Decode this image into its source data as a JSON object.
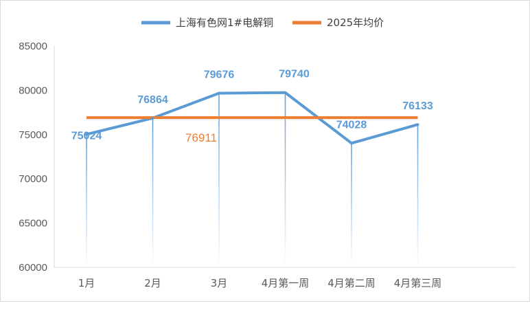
{
  "chart_data": {
    "type": "line",
    "categories": [
      "1月",
      "2月",
      "3月",
      "4月第一周",
      "4月第二周",
      "4月第三周"
    ],
    "ylim": [
      60000,
      85000
    ],
    "yticks": [
      60000,
      65000,
      70000,
      75000,
      80000,
      85000
    ],
    "series": [
      {
        "name": "上海有色网1#电解铜",
        "color": "#5b9bd5",
        "values": [
          75024,
          76864,
          79676,
          79740,
          74028,
          76133
        ],
        "labels": [
          "75024",
          "76864",
          "79676",
          "79740",
          "74028",
          "76133"
        ]
      },
      {
        "name": "2025年均价",
        "color": "#ed7d31",
        "values": [
          76911,
          76911,
          76911,
          76911,
          76911,
          76911
        ],
        "labels": [
          "76911"
        ]
      }
    ],
    "legend_position": "top",
    "grid": false,
    "drop_lines": true
  }
}
